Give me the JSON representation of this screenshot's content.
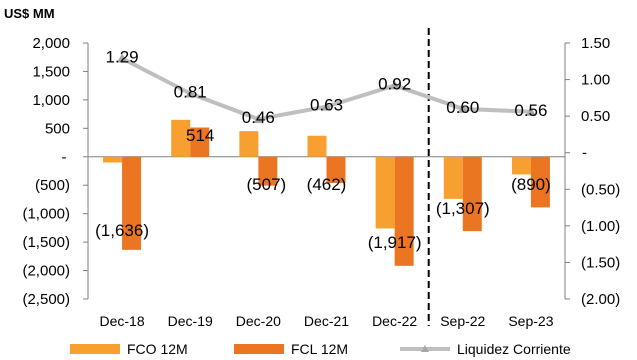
{
  "chart_data": {
    "type": "bar",
    "unit_label": "US$ MM",
    "categories": [
      "Dec-18",
      "Dec-19",
      "Dec-20",
      "Dec-21",
      "Dec-22",
      "Sep-22",
      "Sep-23"
    ],
    "series": [
      {
        "name": "FCO 12M",
        "type": "bar",
        "axis": "left",
        "color": "#f7a030",
        "values": [
          -100,
          650,
          450,
          370,
          -1260,
          -740,
          -310
        ]
      },
      {
        "name": "FCL 12M",
        "type": "bar",
        "axis": "left",
        "color": "#ec7522",
        "values": [
          -1636,
          514,
          -507,
          -462,
          -1917,
          -1307,
          -890
        ],
        "labels": [
          "(1,636)",
          "514",
          "(507)",
          "(462)",
          "(1,917)",
          "(1,307)",
          "(890)"
        ]
      },
      {
        "name": "Liquidez Corriente",
        "type": "line",
        "axis": "right",
        "color": "#bfbfbf",
        "values": [
          1.29,
          0.81,
          0.46,
          0.63,
          0.92,
          0.6,
          0.56
        ],
        "labels": [
          "1.29",
          "0.81",
          "0.46",
          "0.63",
          "0.92",
          "0.60",
          "0.56"
        ]
      }
    ],
    "y_left": {
      "range": [
        -2500,
        2000
      ],
      "ticks": [
        2000,
        1500,
        1000,
        500,
        0,
        -500,
        -1000,
        -1500,
        -2000,
        -2500
      ],
      "tick_labels": [
        "2,000",
        "1,500",
        "1,000",
        "500",
        "-",
        "(500)",
        "(1,000)",
        "(1,500)",
        "(2,000)",
        "(2,500)"
      ]
    },
    "y_right": {
      "range": [
        -2.0,
        1.5
      ],
      "ticks": [
        1.5,
        1.0,
        0.5,
        0,
        -0.5,
        -1.0,
        -1.5,
        -2.0
      ],
      "tick_labels": [
        "1.50",
        "1.00",
        "0.50",
        "-",
        "(0.50)",
        "(1.00)",
        "(1.50)",
        "(2.00)"
      ]
    },
    "separator_after_category": "Dec-22",
    "legend_position": "bottom"
  }
}
